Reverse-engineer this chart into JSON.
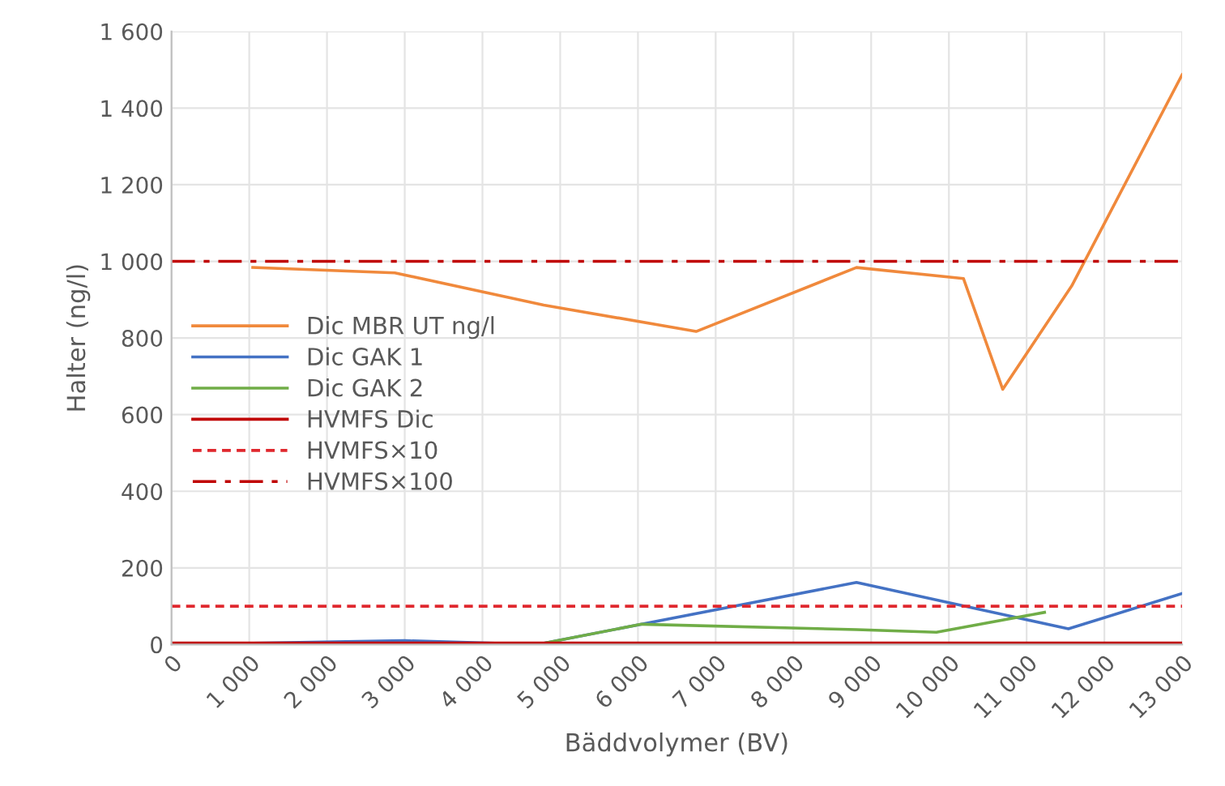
{
  "chart_data": {
    "type": "line",
    "xlabel": "Bäddvolymer (BV)",
    "ylabel": "Halter (ng/l)",
    "xlim": [
      0,
      13000
    ],
    "ylim": [
      0,
      1600
    ],
    "xticks": [
      0,
      {
        "value": 1000,
        "label": "1 000"
      },
      {
        "value": 2000,
        "label": "2 000"
      },
      {
        "value": 3000,
        "label": "3 000"
      },
      {
        "value": 4000,
        "label": "4 000"
      },
      {
        "value": 5000,
        "label": "5 000"
      },
      {
        "value": 6000,
        "label": "6 000"
      },
      {
        "value": 7000,
        "label": "7 000"
      },
      {
        "value": 8000,
        "label": "8 000"
      },
      {
        "value": 9000,
        "label": "9 000"
      },
      {
        "value": 10000,
        "label": "10 000"
      },
      {
        "value": 11000,
        "label": "11 000"
      },
      {
        "value": 12000,
        "label": "12 000"
      },
      {
        "value": 13000,
        "label": "13 000"
      }
    ],
    "yticks": [
      0,
      200,
      400,
      600,
      800,
      {
        "value": 1000,
        "label": "1 000"
      },
      {
        "value": 1200,
        "label": "1 200"
      },
      {
        "value": 1400,
        "label": "1 400"
      },
      {
        "value": 1600,
        "label": "1 600"
      }
    ],
    "grid": true,
    "legend": "center left",
    "marker": "none",
    "series": [
      {
        "name": "Dic MBR UT ng/l",
        "color": "#f0893c",
        "line_style": "solid",
        "x": [
          1045,
          2873,
          4788,
          6748,
          8811,
          10188,
          10692,
          11580,
          13000
        ],
        "values": [
          984,
          970,
          886,
          817,
          984,
          955,
          666,
          936,
          1487
        ]
      },
      {
        "name": "Dic GAK 1",
        "color": "#4472c4",
        "line_style": "solid",
        "x": [
          0,
          3000,
          4700,
          8811,
          11537,
          13000
        ],
        "values": [
          0,
          10,
          0,
          162,
          41,
          133
        ]
      },
      {
        "name": "Dic GAK 2",
        "color": "#70ad47",
        "line_style": "solid",
        "x": [
          0,
          4700,
          6046,
          8811,
          9840,
          11230
        ],
        "values": [
          0,
          0,
          53,
          39,
          32,
          84
        ]
      },
      {
        "name": "HVMFS Dic",
        "color": "#c00000",
        "line_style": "solid",
        "x": [
          0,
          13000
        ],
        "values": [
          4,
          4
        ]
      },
      {
        "name": "HVMFS×10",
        "color": "#e0282e",
        "line_style": "dashed",
        "x": [
          0,
          13000
        ],
        "values": [
          100,
          100
        ]
      },
      {
        "name": "HVMFS×100",
        "color": "#c00000",
        "line_style": "dashdot",
        "x": [
          0,
          13000
        ],
        "values": [
          1000,
          1000
        ]
      }
    ]
  }
}
